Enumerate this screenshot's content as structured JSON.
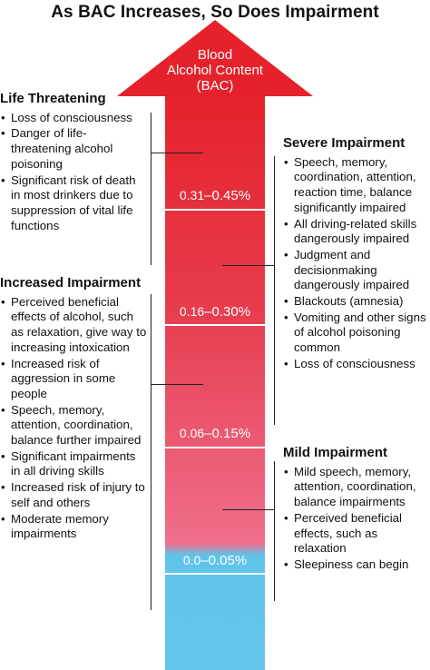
{
  "title": "As BAC Increases, So Does Impairment",
  "arrow": {
    "label_line1": "Blood",
    "label_line2": "Alcohol Content",
    "label_line3": "(BAC)",
    "ranges": [
      {
        "start": "0.31",
        "end": "0.45%"
      },
      {
        "start": "0.16",
        "end": "0.30%"
      },
      {
        "start": "0.06",
        "end": "0.15%"
      },
      {
        "start": "0.0",
        "end": "0.05%"
      }
    ],
    "range_separator": "–",
    "colors": {
      "top": "#e5222b",
      "mid": "#e9566b",
      "lower": "#ef6b87",
      "bottom": "#5fc3ea"
    }
  },
  "sections": {
    "life_threatening": {
      "heading": "Life Threatening",
      "items": [
        "Loss of consciousness",
        "Danger of life-threatening alcohol poisoning",
        "Significant risk of death in most drinkers due to suppression of vital life functions"
      ]
    },
    "increased": {
      "heading": "Increased Impairment",
      "items": [
        "Perceived beneficial effects of alcohol, such as relaxation, give way to increasing intoxication",
        "Increased risk of aggression in some people",
        "Speech, memory, attention, coordination, balance further impaired",
        "Significant impairments in all driving skills",
        "Increased risk of injury to self and others",
        "Moderate memory impairments"
      ]
    },
    "severe": {
      "heading": "Severe Impairment",
      "items": [
        "Speech, memory, coordination, attention, reaction time, balance significantly impaired",
        "All driving-related skills dangerously impaired",
        "Judgment and decisionmaking dangerously impaired",
        "Blackouts (amnesia)",
        "Vomiting and other signs of alcohol poisoning common",
        "Loss of consciousness"
      ]
    },
    "mild": {
      "heading": "Mild Impairment",
      "items": [
        "Mild speech, memory, attention, coordination, balance impairments",
        "Perceived beneficial effects, such as relaxation",
        "Sleepiness can begin"
      ]
    }
  }
}
